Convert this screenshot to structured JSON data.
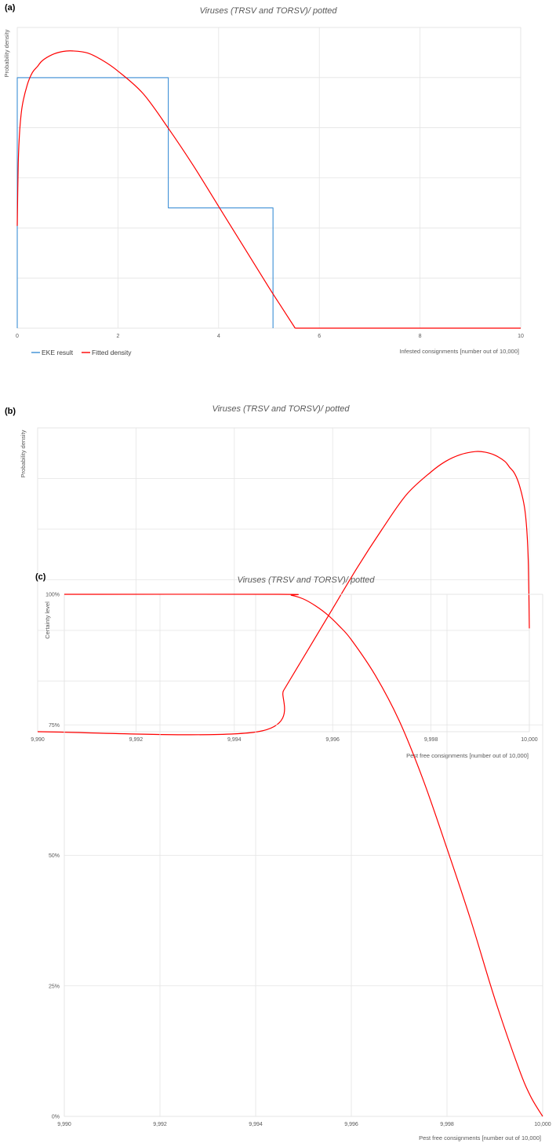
{
  "colors": {
    "eke": "#3c8fd6",
    "fitted": "#ff0000",
    "grid": "#e4e4e4",
    "text": "#595959"
  },
  "chart_data": [
    {
      "panel": "(a)",
      "type": "line",
      "title": "Viruses (TRSV and TORSV)/ potted",
      "xlabel": "Infested consignments [number out of 10,000]",
      "ylabel": "Probability density",
      "xlim": [
        0,
        10
      ],
      "ylim": [
        0,
        1
      ],
      "x_ticks": [
        "0",
        "2",
        "4",
        "6",
        "8",
        "10"
      ],
      "y_gridlines": 6,
      "y_tick_labels": "none",
      "grid": true,
      "legend": {
        "position": "bottom-left",
        "entries": [
          "EKE result",
          "Fitted density"
        ]
      },
      "series": [
        {
          "name": "EKE result",
          "style": "step",
          "color": "#3c8fd6",
          "x": [
            0,
            0,
            3,
            3,
            5.08,
            5.08
          ],
          "y": [
            0,
            0.833,
            0.833,
            0.4,
            0.4,
            0
          ]
        },
        {
          "name": "Fitted density",
          "style": "smooth",
          "color": "#ff0000",
          "x": [
            0,
            0.02,
            0.05,
            0.1,
            0.2,
            0.3,
            0.4,
            0.5,
            0.7,
            0.9,
            1.1,
            1.4,
            1.7,
            2.0,
            2.5,
            3.0,
            3.5,
            4.0,
            4.5,
            5.0,
            5.25,
            5.52,
            6,
            7,
            8,
            9,
            10
          ],
          "y": [
            0.34,
            0.55,
            0.66,
            0.74,
            0.81,
            0.85,
            0.87,
            0.89,
            0.91,
            0.92,
            0.922,
            0.915,
            0.89,
            0.855,
            0.78,
            0.665,
            0.54,
            0.405,
            0.27,
            0.135,
            0.07,
            0,
            0,
            0,
            0,
            0,
            0
          ]
        }
      ]
    },
    {
      "panel": "(b)",
      "type": "line",
      "title": "Viruses (TRSV and TORSV)/ potted",
      "xlabel": "Pest free consignments [number out of 10,000]",
      "ylabel": "Probability density",
      "xlim": [
        9990,
        10000
      ],
      "ylim": [
        0,
        1
      ],
      "x_ticks": [
        "9,990",
        "9,992",
        "9,994",
        "9,996",
        "9,998",
        "10,000"
      ],
      "y_gridlines": 6,
      "y_tick_labels": "none",
      "grid": true,
      "series": [
        {
          "name": "Fitted density",
          "style": "smooth",
          "color": "#ff0000",
          "x": [
            9990,
            9994.48,
            9995,
            9995.5,
            9996,
            9996.5,
            9997,
            9997.5,
            9998,
            9998.3,
            9998.6,
            9998.9,
            9999.1,
            9999.3,
            9999.5,
            9999.6,
            9999.7,
            9999.8,
            9999.9,
            9999.95,
            9999.98,
            10000
          ],
          "y": [
            0,
            0,
            0.135,
            0.27,
            0.405,
            0.54,
            0.665,
            0.78,
            0.855,
            0.89,
            0.912,
            0.922,
            0.92,
            0.91,
            0.89,
            0.87,
            0.85,
            0.81,
            0.74,
            0.66,
            0.55,
            0.34
          ]
        }
      ]
    },
    {
      "panel": "(c)",
      "type": "line",
      "title": "Viruses (TRSV and TORSV)/ potted",
      "xlabel": "Pest free consignments [number out of 10,000]",
      "ylabel": "Certainty level",
      "xlim": [
        9990,
        10000
      ],
      "ylim": [
        0,
        100
      ],
      "x_ticks": [
        "9,990",
        "9,992",
        "9,994",
        "9,996",
        "9,998",
        "10,000"
      ],
      "y_ticks": [
        "0%",
        "25%",
        "50%",
        "75%",
        "100%"
      ],
      "grid": true,
      "series": [
        {
          "name": "Certainty level",
          "style": "smooth",
          "color": "#ff0000",
          "x": [
            9990,
            9994.48,
            9994.75,
            9995,
            9995.25,
            9995.5,
            9995.75,
            9996,
            9996.5,
            9997,
            9997.5,
            9998,
            9998.5,
            9999,
            9999.5,
            9999.75,
            10000
          ],
          "y": [
            100,
            100,
            99.8,
            99.1,
            97.8,
            96.1,
            93.9,
            91.3,
            84.5,
            75.8,
            64.5,
            51.3,
            37.5,
            22.5,
            9.2,
            3.8,
            0
          ]
        }
      ]
    }
  ]
}
